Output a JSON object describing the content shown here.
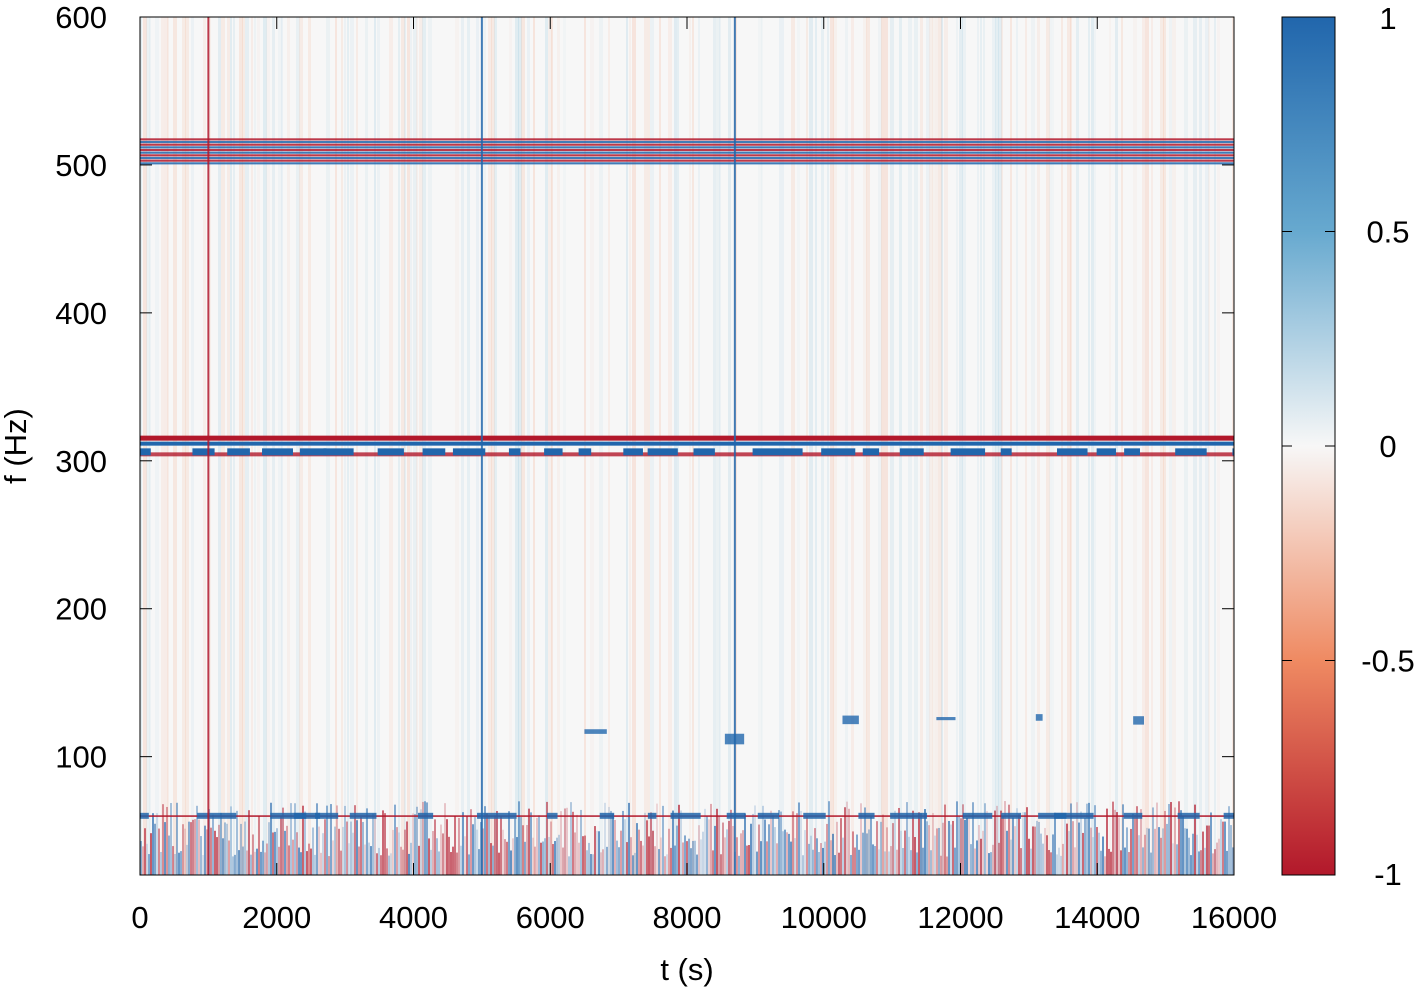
{
  "chart_data": {
    "type": "heatmap",
    "title": "",
    "xlabel": "t (s)",
    "ylabel": "f (Hz)",
    "xlim": [
      0,
      16000
    ],
    "ylim": [
      20,
      600
    ],
    "x_ticks": [
      "0",
      "2000",
      "4000",
      "6000",
      "8000",
      "10000",
      "12000",
      "14000",
      "16000"
    ],
    "y_ticks": [
      "100",
      "200",
      "300",
      "400",
      "500",
      "600"
    ],
    "colorbar": {
      "range": [
        -1,
        1
      ],
      "ticks": [
        "-1",
        "-0.5",
        "0",
        "0.5",
        "1"
      ],
      "colors": {
        "negative": "#b2182b",
        "neutral": "#f7f7f7",
        "positive": "#2166ac"
      }
    },
    "grid": false,
    "features": {
      "horizontal_bands_hz": [
        {
          "f_min": 500,
          "f_max": 518,
          "pattern": "alternating red/blue stripes"
        },
        {
          "f_min": 303,
          "f_max": 317,
          "pattern": "red upper line, blue lower line"
        },
        {
          "f_min": 58,
          "f_max": 62,
          "pattern": "thin red line with blue dashes"
        },
        {
          "f_min": 115,
          "f_max": 130,
          "pattern": "intermittent blue dashes"
        }
      ],
      "low_frequency_noise_band_hz": [
        20,
        70
      ],
      "vertical_lines_s": [
        {
          "t": 1000,
          "color": "red"
        },
        {
          "t": 5000,
          "color": "blue"
        },
        {
          "t": 8700,
          "color": "blue"
        }
      ]
    }
  }
}
